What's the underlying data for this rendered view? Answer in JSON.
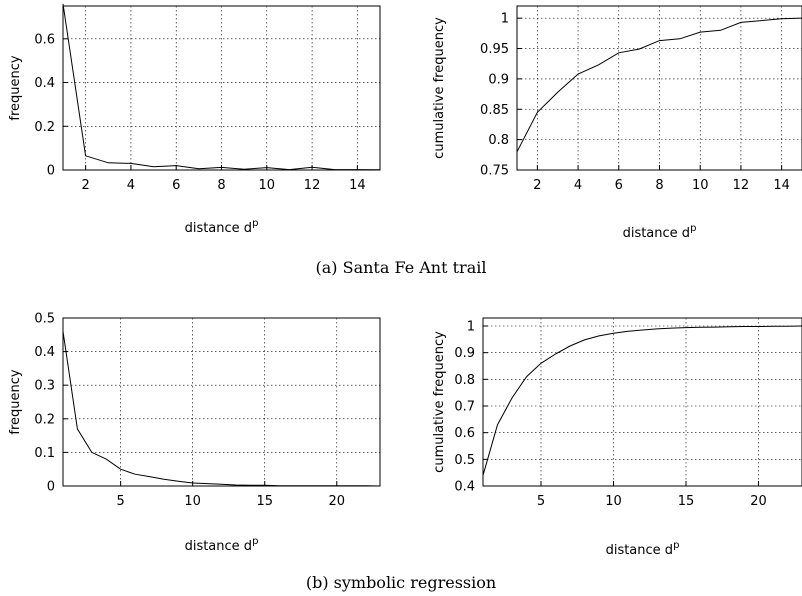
{
  "chart_data": [
    {
      "type": "line",
      "xlabel": "distance d",
      "xlabel_sup": "p",
      "ylabel": "frequency",
      "xlim": [
        1,
        15
      ],
      "ylim": [
        0,
        0.75
      ],
      "xticks": [
        2,
        4,
        6,
        8,
        10,
        12,
        14
      ],
      "yticks": [
        0,
        0.2,
        0.4,
        0.6
      ],
      "x": [
        1,
        2,
        3,
        4,
        5,
        6,
        7,
        8,
        9,
        10,
        11,
        12,
        13,
        14,
        15
      ],
      "y": [
        0.76,
        0.065,
        0.033,
        0.03,
        0.015,
        0.02,
        0.006,
        0.012,
        0.003,
        0.011,
        0.002,
        0.013,
        0.002,
        0.002,
        0.001
      ]
    },
    {
      "type": "line",
      "xlabel": "distance d",
      "xlabel_sup": "p",
      "ylabel": "cumulative frequency",
      "xlim": [
        1,
        15
      ],
      "ylim": [
        0.75,
        1.02
      ],
      "xticks": [
        2,
        4,
        6,
        8,
        10,
        12,
        14
      ],
      "yticks": [
        0.75,
        0.8,
        0.85,
        0.9,
        0.95,
        1
      ],
      "x": [
        1,
        2,
        3,
        4,
        5,
        6,
        7,
        8,
        9,
        10,
        11,
        12,
        13,
        14,
        15
      ],
      "y": [
        0.78,
        0.845,
        0.878,
        0.908,
        0.923,
        0.943,
        0.949,
        0.963,
        0.966,
        0.977,
        0.98,
        0.993,
        0.996,
        0.999,
        1.0
      ]
    },
    {
      "type": "line",
      "xlabel": "distance d",
      "xlabel_sup": "p",
      "ylabel": "frequency",
      "xlim": [
        1,
        23
      ],
      "ylim": [
        0,
        0.5
      ],
      "xticks": [
        5,
        10,
        15,
        20
      ],
      "yticks": [
        0,
        0.1,
        0.2,
        0.3,
        0.4,
        0.5
      ],
      "x": [
        1,
        2,
        3,
        4,
        5,
        6,
        7,
        8,
        9,
        10,
        11,
        12,
        13,
        14,
        15,
        16,
        17,
        18,
        19,
        20,
        21,
        22,
        23
      ],
      "y": [
        0.46,
        0.17,
        0.1,
        0.08,
        0.05,
        0.035,
        0.028,
        0.02,
        0.014,
        0.009,
        0.007,
        0.005,
        0.003,
        0.002,
        0.002,
        0.001,
        0.001,
        0.001,
        0.001,
        0.001,
        0.001,
        0.001,
        0.0
      ]
    },
    {
      "type": "line",
      "xlabel": "distance d",
      "xlabel_sup": "p",
      "ylabel": "cumulative frequency",
      "xlim": [
        1,
        23
      ],
      "ylim": [
        0.4,
        1.03
      ],
      "xticks": [
        5,
        10,
        15,
        20
      ],
      "yticks": [
        0.4,
        0.5,
        0.6,
        0.7,
        0.8,
        0.9,
        1
      ],
      "x": [
        1,
        2,
        3,
        4,
        5,
        6,
        7,
        8,
        9,
        10,
        11,
        12,
        13,
        14,
        15,
        16,
        17,
        18,
        19,
        20,
        21,
        22,
        23
      ],
      "y": [
        0.44,
        0.63,
        0.73,
        0.81,
        0.86,
        0.895,
        0.925,
        0.948,
        0.963,
        0.973,
        0.98,
        0.985,
        0.989,
        0.992,
        0.994,
        0.995,
        0.996,
        0.997,
        0.998,
        0.998,
        0.999,
        0.999,
        1.0
      ]
    }
  ],
  "captions": {
    "top": "(a) Santa Fe Ant trail",
    "bottom": "(b) symbolic regression"
  }
}
